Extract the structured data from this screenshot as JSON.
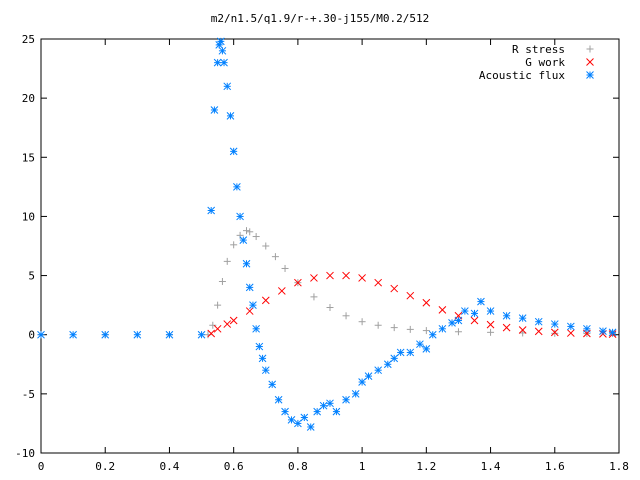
{
  "chart_data": {
    "type": "scatter",
    "title": "m2/n1.5/q1.9/r-+.30-j155/M0.2/512",
    "xlabel": "",
    "ylabel": "",
    "xlim": [
      0,
      1.8
    ],
    "ylim": [
      -10,
      25
    ],
    "x_ticks": [
      "0",
      "0.2",
      "0.4",
      "0.6",
      "0.8",
      "1",
      "1.2",
      "1.4",
      "1.6",
      "1.8"
    ],
    "y_ticks": [
      "-10",
      "-5",
      "0",
      "5",
      "10",
      "15",
      "20",
      "25"
    ],
    "grid": false,
    "legend_position": "top-right",
    "series": [
      {
        "name": "R stress",
        "marker": "plus",
        "color": "#a0a0a0",
        "x": [
          0.0,
          0.2,
          0.4,
          0.52,
          0.535,
          0.55,
          0.565,
          0.58,
          0.6,
          0.62,
          0.64,
          0.65,
          0.67,
          0.7,
          0.73,
          0.76,
          0.8,
          0.85,
          0.9,
          0.95,
          1.0,
          1.05,
          1.1,
          1.15,
          1.2,
          1.3,
          1.4,
          1.5,
          1.6,
          1.7,
          1.78
        ],
        "y": [
          0,
          0,
          0,
          0,
          0.8,
          2.5,
          4.5,
          6.2,
          7.6,
          8.4,
          8.8,
          8.7,
          8.3,
          7.5,
          6.6,
          5.6,
          4.4,
          3.2,
          2.3,
          1.6,
          1.1,
          0.8,
          0.6,
          0.45,
          0.35,
          0.25,
          0.2,
          0.15,
          0.12,
          0.1,
          0.1
        ]
      },
      {
        "name": "G work",
        "marker": "cross",
        "color": "#ff0000",
        "x": [
          0.53,
          0.55,
          0.58,
          0.6,
          0.65,
          0.7,
          0.75,
          0.8,
          0.85,
          0.9,
          0.95,
          1.0,
          1.05,
          1.1,
          1.15,
          1.2,
          1.25,
          1.3,
          1.35,
          1.4,
          1.45,
          1.5,
          1.55,
          1.6,
          1.65,
          1.7,
          1.75,
          1.78
        ],
        "y": [
          0.1,
          0.5,
          0.9,
          1.2,
          2.0,
          2.9,
          3.7,
          4.4,
          4.8,
          5.0,
          5.0,
          4.8,
          4.4,
          3.9,
          3.3,
          2.7,
          2.1,
          1.6,
          1.2,
          0.85,
          0.6,
          0.4,
          0.28,
          0.2,
          0.14,
          0.1,
          0.07,
          0.05
        ]
      },
      {
        "name": "Acoustic flux",
        "marker": "star",
        "color": "#0080ff",
        "x": [
          0.0,
          0.1,
          0.2,
          0.3,
          0.4,
          0.5,
          0.53,
          0.54,
          0.55,
          0.555,
          0.56,
          0.565,
          0.57,
          0.58,
          0.59,
          0.6,
          0.61,
          0.62,
          0.63,
          0.64,
          0.65,
          0.66,
          0.67,
          0.68,
          0.69,
          0.7,
          0.72,
          0.74,
          0.76,
          0.78,
          0.8,
          0.82,
          0.84,
          0.86,
          0.88,
          0.9,
          0.92,
          0.95,
          0.98,
          1.0,
          1.02,
          1.05,
          1.08,
          1.1,
          1.12,
          1.15,
          1.18,
          1.2,
          1.22,
          1.25,
          1.28,
          1.3,
          1.32,
          1.35,
          1.37,
          1.4,
          1.45,
          1.5,
          1.55,
          1.6,
          1.65,
          1.7,
          1.75,
          1.78
        ],
        "y": [
          0,
          0,
          0,
          0,
          0,
          0,
          10.5,
          19.0,
          23.0,
          24.5,
          24.8,
          24.0,
          23.0,
          21.0,
          18.5,
          15.5,
          12.5,
          10.0,
          8.0,
          6.0,
          4.0,
          2.5,
          0.5,
          -1.0,
          -2.0,
          -3.0,
          -4.2,
          -5.5,
          -6.5,
          -7.2,
          -7.5,
          -7.0,
          -7.8,
          -6.5,
          -6.0,
          -5.8,
          -6.5,
          -5.5,
          -5.0,
          -4.0,
          -3.5,
          -3.0,
          -2.5,
          -2.0,
          -1.5,
          -1.5,
          -0.8,
          -1.2,
          0.0,
          0.5,
          1.0,
          1.2,
          2.0,
          1.8,
          2.8,
          2.0,
          1.6,
          1.4,
          1.1,
          0.9,
          0.7,
          0.5,
          0.3,
          0.2
        ]
      }
    ]
  }
}
